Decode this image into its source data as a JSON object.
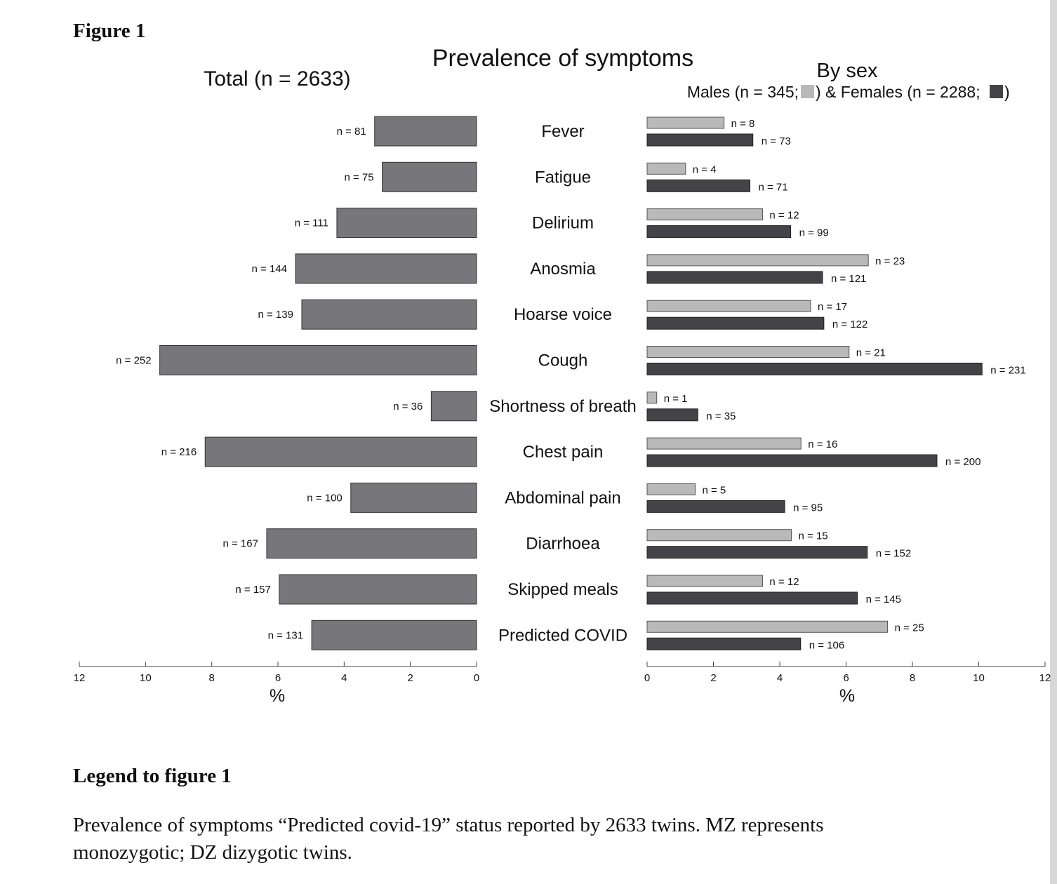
{
  "figure_label": "Figure 1",
  "legend_heading": "Legend to figure 1",
  "legend_text": "Prevalence of symptoms “Predicted covid-19” status reported by 2633 twins. MZ represents monozygotic; DZ dizygotic twins.",
  "colors": {
    "total": "#77777b",
    "males": "#b9b9b9",
    "females": "#444448"
  },
  "chart_data": [
    {
      "type": "bar",
      "orientation": "horizontal-reversed",
      "title": "Prevalence of symptoms",
      "subtitle": "Total (n = 2633)",
      "xlabel": "%",
      "xlim": [
        0,
        12
      ],
      "xticks": [
        "0",
        "2",
        "4",
        "6",
        "8",
        "10",
        "12"
      ],
      "categories": [
        "Fever",
        "Fatigue",
        "Delirium",
        "Anosmia",
        "Hoarse voice",
        "Cough",
        "Shortness of breath",
        "Chest pain",
        "Abdominal pain",
        "Diarrhoea",
        "Skipped meals",
        "Predicted COVID"
      ],
      "values": [
        3.08,
        2.85,
        4.22,
        5.47,
        5.28,
        9.57,
        1.37,
        8.2,
        3.8,
        6.34,
        5.96,
        4.98
      ],
      "labels": [
        "n = 81",
        "n = 75",
        "n = 111",
        "n = 144",
        "n = 139",
        "n = 252",
        "n = 36",
        "n = 216",
        "n = 100",
        "n = 167",
        "n = 157",
        "n = 131"
      ]
    },
    {
      "type": "bar",
      "orientation": "horizontal",
      "subtitle": "By sex",
      "legend": {
        "males_text": "Males (n = 345;",
        "mid_text": ") & Females (n = 2288;",
        "end_text": ")"
      },
      "xlabel": "%",
      "xlim": [
        0,
        12
      ],
      "xticks": [
        "0",
        "2",
        "4",
        "6",
        "8",
        "10",
        "12"
      ],
      "series": [
        {
          "key": "males",
          "values": [
            2.32,
            1.16,
            3.48,
            6.67,
            4.93,
            6.09,
            0.29,
            4.64,
            1.45,
            4.35,
            3.48,
            7.25
          ],
          "labels": [
            "n = 8",
            "n = 4",
            "n = 12",
            "n = 23",
            "n = 17",
            "n = 21",
            "n = 1",
            "n = 16",
            "n = 5",
            "n = 15",
            "n = 12",
            "n = 25"
          ]
        },
        {
          "key": "females",
          "values": [
            3.19,
            3.1,
            4.33,
            5.29,
            5.33,
            10.1,
            1.53,
            8.74,
            4.15,
            6.64,
            6.34,
            4.63
          ],
          "labels": [
            "n = 73",
            "n = 71",
            "n = 99",
            "n = 121",
            "n = 122",
            "n = 231",
            "n = 35",
            "n = 200",
            "n = 95",
            "n = 152",
            "n = 145",
            "n = 106"
          ]
        }
      ]
    }
  ]
}
